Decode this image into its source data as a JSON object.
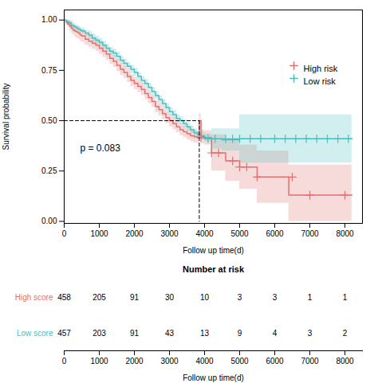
{
  "chart_data": {
    "type": "step",
    "xlabel": "Follow up time(d)",
    "ylabel": "Survival probability",
    "xlim": [
      0,
      8500
    ],
    "ylim": [
      -0.01,
      1.05
    ],
    "xticks": [
      0,
      1000,
      2000,
      3000,
      4000,
      5000,
      6000,
      7000,
      8000
    ],
    "yticks": [
      {
        "value": 0,
        "label": "0.00"
      },
      {
        "value": 0.25,
        "label": "0.25"
      },
      {
        "value": 0.5,
        "label": "0.50"
      },
      {
        "value": 0.75,
        "label": "0.75"
      },
      {
        "value": 1,
        "label": "1.00"
      }
    ],
    "legend": "upper right",
    "annotations": [
      "p = 0.083"
    ],
    "reference_lines": [
      {
        "x": [
          0,
          3850
        ],
        "y": [
          0.5,
          0.5
        ],
        "line_style": "dashed"
      },
      {
        "x": [
          3850,
          3850
        ],
        "y": [
          0.5,
          0
        ],
        "line_style": "dashed"
      }
    ],
    "series": [
      {
        "name": "High risk",
        "color": "#E07070",
        "x": [
          0,
          50,
          100,
          150,
          200,
          250,
          300,
          350,
          400,
          450,
          500,
          600,
          700,
          800,
          900,
          1000,
          1100,
          1200,
          1300,
          1400,
          1500,
          1600,
          1700,
          1800,
          1900,
          2000,
          2100,
          2200,
          2300,
          2400,
          2500,
          2600,
          2700,
          2800,
          2900,
          3000,
          3100,
          3200,
          3300,
          3400,
          3500,
          3600,
          3700,
          3800,
          3850,
          3900,
          4000,
          4200,
          4400,
          4600,
          5000,
          5500,
          6200,
          6400,
          8000,
          8200
        ],
        "values": [
          1.0,
          0.99,
          0.98,
          0.97,
          0.96,
          0.95,
          0.945,
          0.94,
          0.935,
          0.925,
          0.92,
          0.905,
          0.895,
          0.885,
          0.875,
          0.86,
          0.845,
          0.83,
          0.81,
          0.795,
          0.775,
          0.755,
          0.74,
          0.72,
          0.7,
          0.685,
          0.67,
          0.655,
          0.635,
          0.615,
          0.595,
          0.57,
          0.555,
          0.535,
          0.515,
          0.5,
          0.485,
          0.47,
          0.455,
          0.445,
          0.435,
          0.425,
          0.42,
          0.415,
          0.5,
          0.42,
          0.415,
          0.34,
          0.34,
          0.3,
          0.27,
          0.22,
          0.22,
          0.13,
          0.13,
          0.13
        ],
        "upper": [
          1.0,
          1.0,
          1.0,
          0.995,
          0.99,
          0.98,
          0.975,
          0.97,
          0.965,
          0.955,
          0.95,
          0.935,
          0.925,
          0.915,
          0.905,
          0.89,
          0.875,
          0.86,
          0.84,
          0.825,
          0.805,
          0.785,
          0.77,
          0.75,
          0.73,
          0.715,
          0.7,
          0.685,
          0.665,
          0.645,
          0.625,
          0.6,
          0.585,
          0.565,
          0.545,
          0.53,
          0.515,
          0.5,
          0.485,
          0.475,
          0.465,
          0.455,
          0.45,
          0.445,
          0.535,
          0.455,
          0.45,
          0.43,
          0.43,
          0.4,
          0.38,
          0.35,
          0.35,
          0.28,
          0.28,
          0.28
        ],
        "lower": [
          1.0,
          0.975,
          0.965,
          0.945,
          0.935,
          0.925,
          0.915,
          0.91,
          0.905,
          0.895,
          0.89,
          0.875,
          0.865,
          0.855,
          0.845,
          0.83,
          0.815,
          0.8,
          0.78,
          0.765,
          0.745,
          0.725,
          0.71,
          0.69,
          0.67,
          0.655,
          0.64,
          0.625,
          0.605,
          0.585,
          0.565,
          0.54,
          0.525,
          0.505,
          0.485,
          0.47,
          0.455,
          0.44,
          0.425,
          0.415,
          0.405,
          0.395,
          0.39,
          0.385,
          0.465,
          0.385,
          0.38,
          0.25,
          0.25,
          0.2,
          0.16,
          0.09,
          0.09,
          0.0,
          0.0,
          0.0
        ],
        "censor_x": [
          3900,
          4200,
          4400,
          4800,
          5000,
          5200,
          5500,
          6500,
          7000,
          8000
        ],
        "censor_y": [
          0.415,
          0.34,
          0.34,
          0.3,
          0.27,
          0.27,
          0.22,
          0.22,
          0.13,
          0.13
        ]
      },
      {
        "name": "Low risk",
        "color": "#4BBFBF",
        "x": [
          0,
          50,
          100,
          150,
          200,
          250,
          300,
          350,
          400,
          450,
          500,
          600,
          700,
          800,
          900,
          1000,
          1100,
          1200,
          1300,
          1400,
          1500,
          1600,
          1700,
          1800,
          1900,
          2000,
          2100,
          2200,
          2300,
          2400,
          2500,
          2600,
          2700,
          2800,
          2900,
          3000,
          3100,
          3200,
          3300,
          3400,
          3500,
          3600,
          3700,
          3800,
          3900,
          4000,
          4200,
          4500,
          5000,
          5500,
          6000,
          6500,
          7000,
          7500,
          8000,
          8200
        ],
        "values": [
          1.0,
          0.995,
          0.99,
          0.985,
          0.975,
          0.97,
          0.965,
          0.96,
          0.955,
          0.95,
          0.945,
          0.935,
          0.925,
          0.91,
          0.9,
          0.89,
          0.875,
          0.86,
          0.845,
          0.835,
          0.82,
          0.8,
          0.785,
          0.77,
          0.755,
          0.74,
          0.72,
          0.7,
          0.685,
          0.665,
          0.645,
          0.625,
          0.605,
          0.585,
          0.565,
          0.545,
          0.53,
          0.51,
          0.5,
          0.485,
          0.47,
          0.455,
          0.44,
          0.43,
          0.425,
          0.415,
          0.41,
          0.405,
          0.41,
          0.41,
          0.41,
          0.41,
          0.41,
          0.41,
          0.41,
          0.41
        ],
        "upper": [
          1.0,
          1.0,
          1.0,
          1.0,
          0.995,
          0.985,
          0.98,
          0.975,
          0.97,
          0.965,
          0.96,
          0.95,
          0.945,
          0.93,
          0.92,
          0.91,
          0.895,
          0.88,
          0.865,
          0.855,
          0.84,
          0.82,
          0.805,
          0.79,
          0.775,
          0.76,
          0.74,
          0.72,
          0.705,
          0.685,
          0.665,
          0.645,
          0.625,
          0.605,
          0.585,
          0.565,
          0.55,
          0.53,
          0.52,
          0.505,
          0.49,
          0.475,
          0.46,
          0.45,
          0.445,
          0.435,
          0.46,
          0.46,
          0.53,
          0.53,
          0.53,
          0.53,
          0.53,
          0.53,
          0.53,
          0.53
        ],
        "lower": [
          1.0,
          0.98,
          0.975,
          0.97,
          0.96,
          0.955,
          0.95,
          0.945,
          0.94,
          0.935,
          0.93,
          0.92,
          0.905,
          0.89,
          0.88,
          0.87,
          0.855,
          0.84,
          0.825,
          0.815,
          0.8,
          0.78,
          0.765,
          0.75,
          0.735,
          0.72,
          0.7,
          0.68,
          0.665,
          0.645,
          0.625,
          0.605,
          0.585,
          0.565,
          0.545,
          0.525,
          0.51,
          0.49,
          0.48,
          0.465,
          0.45,
          0.435,
          0.42,
          0.41,
          0.405,
          0.395,
          0.36,
          0.35,
          0.29,
          0.29,
          0.29,
          0.29,
          0.29,
          0.29,
          0.29,
          0.29
        ],
        "censor_x": [
          4100,
          4300,
          4600,
          4800,
          5000,
          5300,
          5600,
          6000,
          6300,
          6600,
          6900,
          7200,
          7500,
          7800,
          8100
        ],
        "censor_y": [
          0.41,
          0.41,
          0.41,
          0.41,
          0.41,
          0.41,
          0.41,
          0.41,
          0.41,
          0.41,
          0.41,
          0.41,
          0.41,
          0.41,
          0.41
        ]
      }
    ],
    "risk_table": {
      "title": "Number at risk",
      "x": [
        0,
        1000,
        2000,
        3000,
        4000,
        5000,
        6000,
        7000,
        8000
      ],
      "rows": [
        {
          "label": "High score",
          "counts": [
            458,
            205,
            91,
            30,
            10,
            3,
            3,
            1,
            1
          ]
        },
        {
          "label": "Low score",
          "counts": [
            457,
            203,
            91,
            43,
            13,
            9,
            4,
            3,
            2
          ]
        }
      ]
    }
  }
}
